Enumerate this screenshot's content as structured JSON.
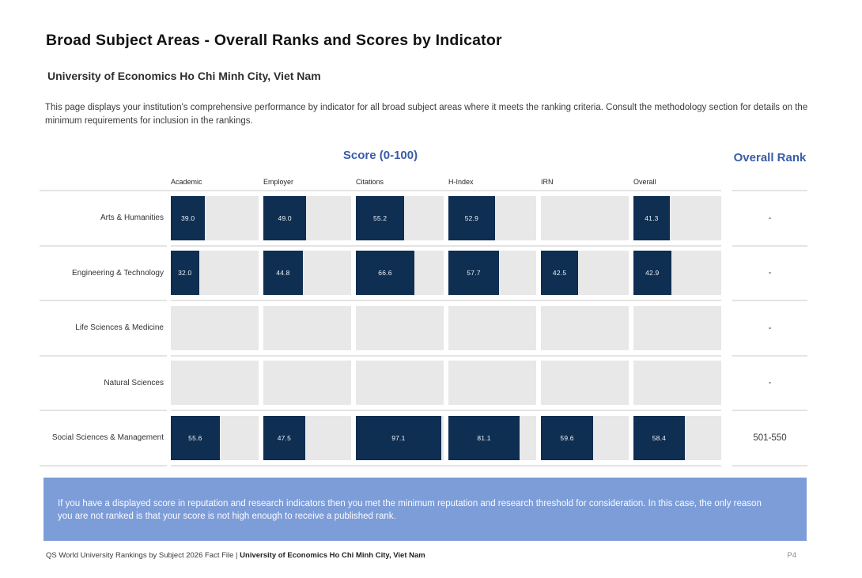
{
  "page": {
    "title": "Broad Subject Areas - Overall Ranks and Scores by Indicator",
    "institution": "University of Economics Ho Chi Minh City, Viet Nam",
    "intro": "This page displays your institution's comprehensive performance by indicator for all broad subject areas where it meets the ranking criteria. Consult the methodology section for details on the minimum requirements for inclusion in the rankings."
  },
  "colors": {
    "bar_fill": "#0e2e52",
    "bar_track": "#e8e8e8",
    "heading_blue": "#3b5ca7",
    "banner_bg": "#7d9dd8"
  },
  "table": {
    "score_header": "Score (0-100)",
    "rank_header": "Overall Rank"
  },
  "chart_data": {
    "type": "bar",
    "title": "Score (0-100)",
    "value_range": [
      0,
      100
    ],
    "indicators": [
      "Academic",
      "Employer",
      "Citations",
      "H-Index",
      "IRN",
      "Overall"
    ],
    "rows": [
      {
        "subject": "Arts & Humanities",
        "scores": [
          39.0,
          49.0,
          55.2,
          52.9,
          null,
          41.3
        ],
        "overall_rank": "-"
      },
      {
        "subject": "Engineering & Technology",
        "scores": [
          32.0,
          44.8,
          66.6,
          57.7,
          42.5,
          42.9
        ],
        "overall_rank": "-"
      },
      {
        "subject": "Life Sciences & Medicine",
        "scores": [
          null,
          null,
          null,
          null,
          null,
          null
        ],
        "overall_rank": "-"
      },
      {
        "subject": "Natural Sciences",
        "scores": [
          null,
          null,
          null,
          null,
          null,
          null
        ],
        "overall_rank": "-"
      },
      {
        "subject": "Social Sciences & Management",
        "scores": [
          55.6,
          47.5,
          97.1,
          81.1,
          59.6,
          58.4
        ],
        "overall_rank": "501-550"
      }
    ]
  },
  "banner": {
    "text": "If you have a displayed score in reputation and research indicators then you met the minimum reputation and research threshold for consideration. In this case, the only reason you are not ranked is that your score is not high enough to receive a published rank."
  },
  "footer": {
    "left_regular": "QS World University Rankings by Subject 2026 Fact File | ",
    "left_bold": "University of Economics Ho Chi Minh City, Viet Nam",
    "page_number": "P4"
  }
}
